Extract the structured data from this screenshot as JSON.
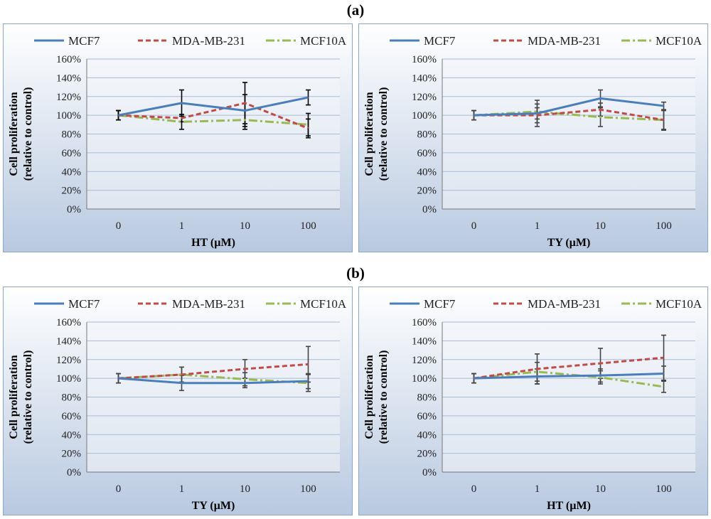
{
  "panels": {
    "a": "(a)",
    "b": "(b)"
  },
  "series_styles": [
    {
      "name": "MCF7",
      "color": "#4a7ebb",
      "dash": ""
    },
    {
      "name": "MDA-MB-231",
      "color": "#be4b48",
      "dash": "7,4"
    },
    {
      "name": "MCF10A",
      "color": "#98b954",
      "dash": "12,4,3,4"
    }
  ],
  "chart_data": [
    {
      "type": "line",
      "panel": "a",
      "categories": [
        "0",
        "1",
        "10",
        "100"
      ],
      "xlabel": "HT (µM)",
      "ylabel": [
        "Cell proliferation",
        "(relative to control)"
      ],
      "ylim": [
        0,
        160
      ],
      "yticks": [
        "0%",
        "20%",
        "40%",
        "60%",
        "80%",
        "100%",
        "120%",
        "140%",
        "160%"
      ],
      "grid": true,
      "legend": "top",
      "error_bar_color": "#000000",
      "series": [
        {
          "name": "MCF7",
          "values": [
            100,
            113,
            105,
            119
          ],
          "errors": [
            5,
            14,
            17,
            8
          ]
        },
        {
          "name": "MDA-MB-231",
          "values": [
            100,
            97,
            113,
            86
          ],
          "errors": [
            5,
            4,
            22,
            10
          ]
        },
        {
          "name": "MCF10A",
          "values": [
            100,
            93,
            95,
            90
          ],
          "errors": [
            5,
            8,
            10,
            12
          ]
        }
      ]
    },
    {
      "type": "line",
      "panel": "a",
      "categories": [
        "0",
        "1",
        "10",
        "100"
      ],
      "xlabel": "TY (µM)",
      "ylabel": [
        "Cell proliferation",
        "(relative to control)"
      ],
      "ylim": [
        0,
        160
      ],
      "yticks": [
        "0%",
        "20%",
        "40%",
        "60%",
        "80%",
        "100%",
        "120%",
        "140%",
        "160%"
      ],
      "grid": true,
      "legend": "top",
      "error_bar_color": "#444444",
      "series": [
        {
          "name": "MCF7",
          "values": [
            100,
            102,
            118,
            110
          ],
          "errors": [
            5,
            14,
            9,
            4
          ]
        },
        {
          "name": "MDA-MB-231",
          "values": [
            100,
            100,
            106,
            95
          ],
          "errors": [
            5,
            8,
            7,
            11
          ]
        },
        {
          "name": "MCF10A",
          "values": [
            100,
            104,
            98,
            95
          ],
          "errors": [
            5,
            8,
            10,
            10
          ]
        }
      ]
    },
    {
      "type": "line",
      "panel": "b",
      "categories": [
        "0",
        "1",
        "10",
        "100"
      ],
      "xlabel": "TY (µM)",
      "ylabel": [
        "Cell proliferation",
        "(relative to control)"
      ],
      "ylim": [
        0,
        160
      ],
      "yticks": [
        "0%",
        "20%",
        "40%",
        "60%",
        "80%",
        "100%",
        "120%",
        "140%",
        "160%"
      ],
      "grid": true,
      "legend": "top",
      "error_bar_color": "#444444",
      "series": [
        {
          "name": "MCF7",
          "values": [
            100,
            95,
            95,
            97
          ],
          "errors": [
            5,
            8,
            5,
            8
          ]
        },
        {
          "name": "MDA-MB-231",
          "values": [
            100,
            104,
            110,
            115
          ],
          "errors": [
            5,
            8,
            10,
            19
          ]
        },
        {
          "name": "MCF10A",
          "values": [
            100,
            104,
            99,
            95
          ],
          "errors": [
            5,
            8,
            7,
            9
          ]
        }
      ]
    },
    {
      "type": "line",
      "panel": "b",
      "categories": [
        "0",
        "1",
        "10",
        "100"
      ],
      "xlabel": "HT (µM)",
      "ylabel": [
        "Cell proliferation",
        "(relative to control)"
      ],
      "ylim": [
        0,
        160
      ],
      "yticks": [
        "0%",
        "20%",
        "40%",
        "60%",
        "80%",
        "100%",
        "120%",
        "140%",
        "160%"
      ],
      "grid": true,
      "legend": "top",
      "error_bar_color": "#444444",
      "series": [
        {
          "name": "MCF7",
          "values": [
            100,
            102,
            103,
            105
          ],
          "errors": [
            5,
            8,
            7,
            8
          ]
        },
        {
          "name": "MDA-MB-231",
          "values": [
            100,
            110,
            116,
            122
          ],
          "errors": [
            5,
            16,
            16,
            24
          ]
        },
        {
          "name": "MCF10A",
          "values": [
            100,
            107,
            101,
            91
          ],
          "errors": [
            5,
            10,
            7,
            6
          ]
        }
      ]
    }
  ]
}
